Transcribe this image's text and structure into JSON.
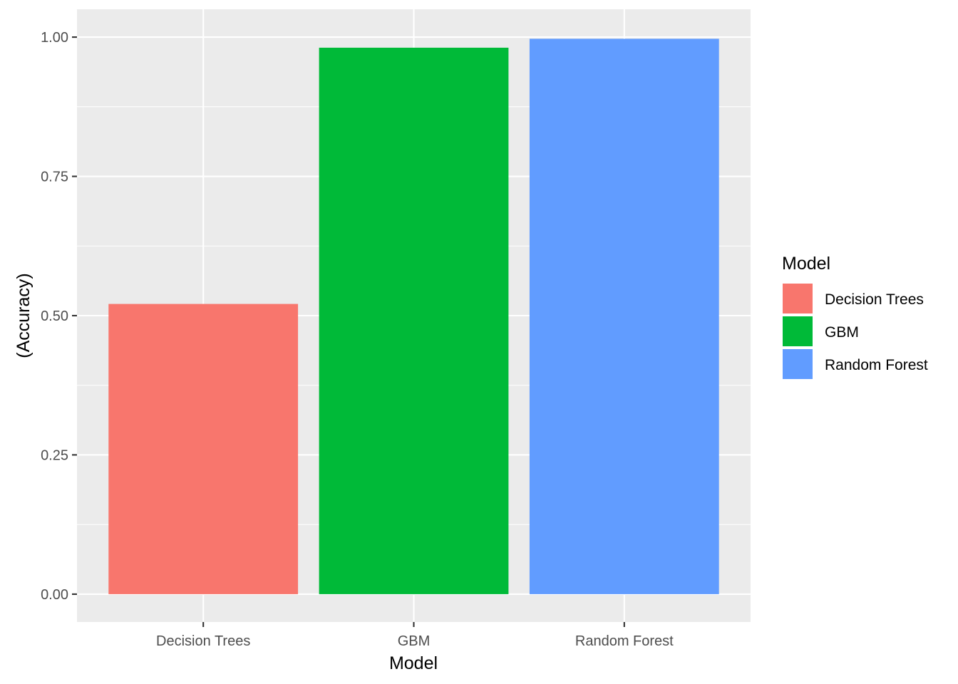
{
  "chart_data": {
    "type": "bar",
    "categories": [
      "Decision Trees",
      "GBM",
      "Random Forest"
    ],
    "values": [
      0.521,
      0.981,
      0.997
    ],
    "colors": [
      "#F8766D",
      "#00BA38",
      "#619CFF"
    ],
    "xlabel": "Model",
    "ylabel": "(Accuracy)",
    "ylim": [
      -0.05,
      1.05
    ],
    "yticks": [
      0,
      0.25,
      0.5,
      0.75,
      1
    ],
    "ytick_labels": [
      "0.00",
      "0.25",
      "0.50",
      "0.75",
      "1.00"
    ],
    "grid": true,
    "legend": {
      "title": "Model",
      "position": "right",
      "entries": [
        "Decision Trees",
        "GBM",
        "Random Forest"
      ]
    },
    "panel_background": "#EBEBEB"
  }
}
